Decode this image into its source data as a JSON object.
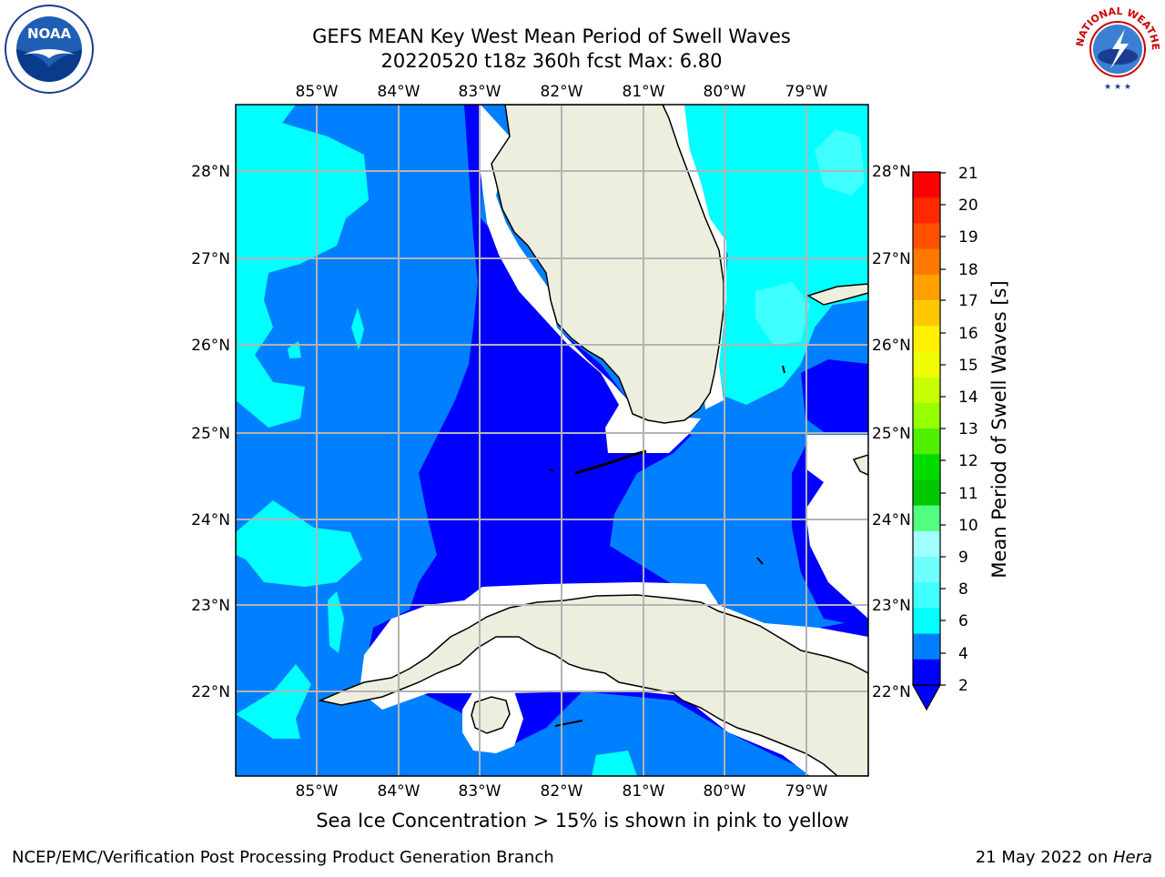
{
  "header": {
    "title_line1": "GEFS MEAN Key West Mean Period of Swell Waves",
    "title_line2": "20220520 t18z 360h fcst   Max: 6.80"
  },
  "logos": {
    "left": {
      "icon": "noaa-logo-icon",
      "text": "NOAA"
    },
    "right": {
      "icon": "nws-logo-icon",
      "text": "NATIONAL WEATHER SERVICE"
    }
  },
  "map": {
    "lon_labels": [
      "85°W",
      "84°W",
      "83°W",
      "82°W",
      "81°W",
      "80°W",
      "79°W"
    ],
    "lat_labels": [
      "28°N",
      "27°N",
      "26°N",
      "25°N",
      "24°N",
      "23°N",
      "22°N"
    ],
    "colors": {
      "land": "#eeeedf",
      "deep": "#0000ff",
      "mid": "#0080ff",
      "cyan": "#00ffff",
      "light_cyan": "#40ffff",
      "grid": "#b4b4b4"
    }
  },
  "colorbar": {
    "label": "Mean Period of Swell Waves [s]",
    "ticks": [
      "21",
      "20",
      "19",
      "18",
      "17",
      "16",
      "15",
      "14",
      "13",
      "12",
      "11",
      "10",
      "9",
      "8",
      "6",
      "4",
      "2"
    ],
    "colors": [
      "#ff0000",
      "#ff2800",
      "#ff5000",
      "#ff7800",
      "#ffa000",
      "#ffc800",
      "#fff000",
      "#f0ff00",
      "#c8ff00",
      "#96ff00",
      "#50f000",
      "#00dc00",
      "#00c800",
      "#50ff80",
      "#a0ffff",
      "#70ffff",
      "#40ffff",
      "#00ffff",
      "#0080ff",
      "#0000ff"
    ]
  },
  "note": "Sea Ice Concentration > 15% is shown in pink to yellow",
  "footer": {
    "left": "NCEP/EMC/Verification Post Processing Product Generation Branch",
    "right_prefix": "21 May 2022 on ",
    "right_italic": "Hera"
  }
}
